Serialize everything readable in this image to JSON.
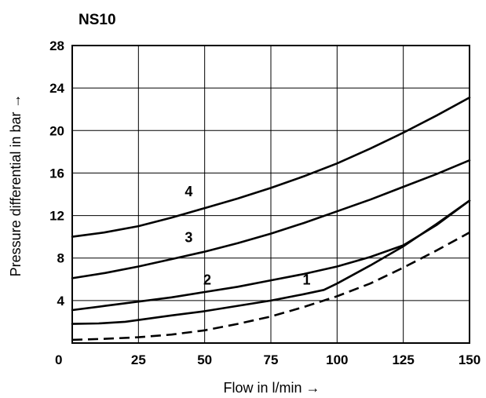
{
  "chart_data": {
    "type": "line",
    "title": "NS10",
    "xlabel": "Flow in l/min →",
    "ylabel": "Pressure differential in bar →",
    "xlim": [
      0,
      150
    ],
    "ylim": [
      0,
      28
    ],
    "x_ticks": [
      0,
      25,
      50,
      75,
      100,
      125,
      150
    ],
    "y_ticks": [
      4,
      8,
      12,
      16,
      20,
      24,
      28
    ],
    "x_tick_labels": [
      "0",
      "25",
      "50",
      "75",
      "100",
      "125",
      "150"
    ],
    "y_tick_labels": [
      "4",
      "8",
      "12",
      "16",
      "20",
      "24",
      "28"
    ],
    "grid": true,
    "series": [
      {
        "name": "4",
        "style": "solid",
        "points": [
          [
            0,
            10
          ],
          [
            12,
            10.4
          ],
          [
            25,
            11
          ],
          [
            37.5,
            11.8
          ],
          [
            50,
            12.7
          ],
          [
            62.5,
            13.6
          ],
          [
            75,
            14.6
          ],
          [
            87.5,
            15.7
          ],
          [
            100,
            16.9
          ],
          [
            112.5,
            18.3
          ],
          [
            125,
            19.8
          ],
          [
            137.5,
            21.4
          ],
          [
            150,
            23.1
          ]
        ]
      },
      {
        "name": "3",
        "style": "solid",
        "points": [
          [
            0,
            6.1
          ],
          [
            12.5,
            6.6
          ],
          [
            25,
            7.2
          ],
          [
            37.5,
            7.9
          ],
          [
            50,
            8.6
          ],
          [
            62.5,
            9.4
          ],
          [
            75,
            10.3
          ],
          [
            87.5,
            11.3
          ],
          [
            100,
            12.4
          ],
          [
            112.5,
            13.5
          ],
          [
            125,
            14.7
          ],
          [
            137.5,
            15.9
          ],
          [
            150,
            17.2
          ]
        ]
      },
      {
        "name": "2",
        "style": "solid",
        "points": [
          [
            0,
            3.1
          ],
          [
            12.5,
            3.5
          ],
          [
            25,
            3.9
          ],
          [
            37.5,
            4.3
          ],
          [
            50,
            4.8
          ],
          [
            62.5,
            5.3
          ],
          [
            75,
            5.9
          ],
          [
            87.5,
            6.5
          ],
          [
            100,
            7.2
          ],
          [
            112.5,
            8.1
          ],
          [
            125,
            9.2
          ],
          [
            137.5,
            11.1
          ],
          [
            150,
            13.4
          ]
        ]
      },
      {
        "name": "1",
        "style": "solid",
        "points": [
          [
            0,
            1.8
          ],
          [
            10,
            1.85
          ],
          [
            20,
            2.0
          ],
          [
            37.5,
            2.6
          ],
          [
            50,
            3.0
          ],
          [
            62.5,
            3.5
          ],
          [
            75,
            4.0
          ],
          [
            87.5,
            4.6
          ],
          [
            95,
            5.0
          ],
          [
            100,
            5.6
          ],
          [
            112.5,
            7.3
          ],
          [
            125,
            9.1
          ],
          [
            137.5,
            11.2
          ],
          [
            150,
            13.4
          ]
        ]
      },
      {
        "style": "dashed",
        "points": [
          [
            0,
            0.3
          ],
          [
            12.5,
            0.4
          ],
          [
            25,
            0.55
          ],
          [
            37.5,
            0.8
          ],
          [
            50,
            1.2
          ],
          [
            62.5,
            1.8
          ],
          [
            75,
            2.5
          ],
          [
            87.5,
            3.4
          ],
          [
            100,
            4.4
          ],
          [
            112.5,
            5.6
          ],
          [
            125,
            7.1
          ],
          [
            137.5,
            8.7
          ],
          [
            150,
            10.4
          ]
        ]
      }
    ],
    "curve_labels": [
      {
        "text": "4",
        "x": 44,
        "y": 13.8
      },
      {
        "text": "3",
        "x": 44,
        "y": 9.5
      },
      {
        "text": "2",
        "x": 51,
        "y": 5.5
      },
      {
        "text": "1",
        "x": 88.5,
        "y": 5.5
      }
    ]
  }
}
